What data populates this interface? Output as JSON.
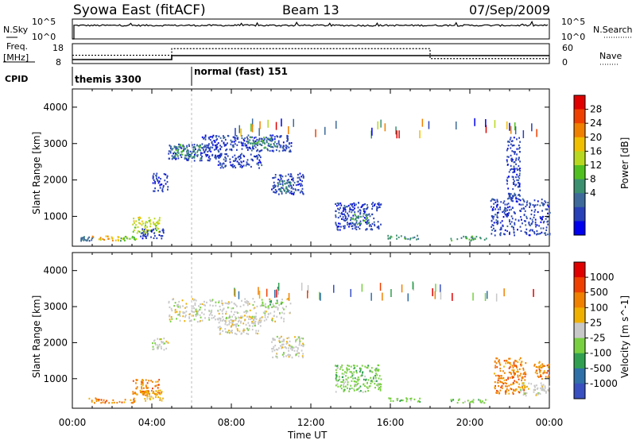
{
  "header": {
    "station": "Syowa East (fitACF)",
    "beam": "Beam 13",
    "date": "07/Sep/2009"
  },
  "top_panels": {
    "nsky_label": "N.Sky",
    "nsearch_label": "N.Search",
    "noise_ticks": [
      "10^5",
      "10^0"
    ],
    "freq_label_1": "Freq.",
    "freq_label_2": "[MHz]",
    "freq_ticks": [
      "18",
      "8"
    ],
    "nave_label": "Nave",
    "nave_ticks": [
      "60",
      "0"
    ],
    "cpid_label": "CPID",
    "cpid_segments": [
      {
        "name": "themis 3300",
        "start_hour": 0,
        "end_hour": 6
      },
      {
        "name": "normal (fast) 151",
        "start_hour": 6,
        "end_hour": 24
      }
    ],
    "freq_profile": [
      {
        "hour": 0,
        "mhz": 10
      },
      {
        "hour": 5,
        "mhz": 12
      },
      {
        "hour": 24,
        "mhz": 12
      }
    ],
    "nave_profile": [
      {
        "hour": 0,
        "n": 25
      },
      {
        "hour": 5,
        "n": 45
      },
      {
        "hour": 18,
        "n": 15
      },
      {
        "hour": 24,
        "n": 15
      }
    ]
  },
  "chart_data": [
    {
      "type": "heatmap",
      "title": "Power",
      "ylabel": "Slant Range [km]",
      "colorbar_label": "Power [dB]",
      "colorbar_ticks": [
        "28",
        "24",
        "20",
        "16",
        "12",
        "8",
        "4"
      ],
      "colors": [
        "#0000ee",
        "#2840b8",
        "#3d6a9a",
        "#3b9070",
        "#50c020",
        "#b8d820",
        "#f0c000",
        "#f08000",
        "#f04000",
        "#e00000"
      ],
      "xlim": [
        0,
        24
      ],
      "ylim": [
        180,
        4500
      ],
      "yticks": [
        "1000",
        "2000",
        "3000",
        "4000"
      ],
      "blobs": [
        {
          "h0": 0.8,
          "h1": 2.4,
          "r0": 350,
          "r1": 480,
          "c": 6
        },
        {
          "h0": 0.4,
          "h1": 1.0,
          "r0": 350,
          "r1": 480,
          "c": 2
        },
        {
          "h0": 2.4,
          "h1": 3.2,
          "r0": 350,
          "r1": 480,
          "c": 4
        },
        {
          "h0": 3.0,
          "h1": 4.4,
          "r0": 550,
          "r1": 1000,
          "c": 5
        },
        {
          "h0": 3.4,
          "h1": 4.6,
          "r0": 400,
          "r1": 700,
          "c": 1
        },
        {
          "h0": 4.0,
          "h1": 4.8,
          "r0": 1700,
          "r1": 2200,
          "c": 1
        },
        {
          "h0": 4.8,
          "h1": 7.5,
          "r0": 2550,
          "r1": 3000,
          "c": 1
        },
        {
          "h0": 5.0,
          "h1": 6.5,
          "r0": 2600,
          "r1": 3000,
          "c": 3
        },
        {
          "h0": 6.5,
          "h1": 11.0,
          "r0": 2800,
          "r1": 3250,
          "c": 1
        },
        {
          "h0": 8.8,
          "h1": 10.2,
          "r0": 2900,
          "r1": 3200,
          "c": 3
        },
        {
          "h0": 7.3,
          "h1": 9.5,
          "r0": 2350,
          "r1": 2750,
          "c": 1
        },
        {
          "h0": 10.0,
          "h1": 11.6,
          "r0": 1600,
          "r1": 2200,
          "c": 1
        },
        {
          "h0": 10.3,
          "h1": 11.0,
          "r0": 1700,
          "r1": 2000,
          "c": 3
        },
        {
          "h0": 13.2,
          "h1": 15.5,
          "r0": 650,
          "r1": 1400,
          "c": 1
        },
        {
          "h0": 14.0,
          "h1": 15.0,
          "r0": 800,
          "r1": 1100,
          "c": 3
        },
        {
          "h0": 15.8,
          "h1": 17.5,
          "r0": 380,
          "r1": 500,
          "c": 3
        },
        {
          "h0": 19.0,
          "h1": 20.8,
          "r0": 350,
          "r1": 480,
          "c": 3
        },
        {
          "h0": 21.0,
          "h1": 24.0,
          "r0": 500,
          "r1": 1500,
          "c": 1
        },
        {
          "h0": 21.8,
          "h1": 22.5,
          "r0": 1500,
          "r1": 3200,
          "c": 1
        }
      ]
    },
    {
      "type": "heatmap",
      "title": "Velocity",
      "ylabel": "Slant Range [km]",
      "xlabel": "Time UT",
      "colorbar_label": "Velocity [m s^-1]",
      "colorbar_ticks": [
        "1000",
        "500",
        "100",
        "25",
        "-25",
        "-100",
        "-500",
        "-1000"
      ],
      "colors": [
        "#3850c0",
        "#2f70a8",
        "#30a050",
        "#78d040",
        "#c8c8c8",
        "#f0b000",
        "#f08000",
        "#f04000",
        "#e00000"
      ],
      "xlim": [
        0,
        24
      ],
      "ylim": [
        180,
        4500
      ],
      "yticks": [
        "1000",
        "2000",
        "3000",
        "4000"
      ],
      "xticks": [
        "00:00",
        "04:00",
        "08:00",
        "12:00",
        "16:00",
        "20:00",
        "00:00"
      ],
      "blobs": [
        {
          "h0": 0.8,
          "h1": 3.2,
          "r0": 350,
          "r1": 480,
          "c": 6
        },
        {
          "h0": 3.0,
          "h1": 4.4,
          "r0": 550,
          "r1": 1000,
          "c": 6
        },
        {
          "h0": 3.4,
          "h1": 4.6,
          "r0": 400,
          "r1": 700,
          "c": 5
        },
        {
          "h0": 4.0,
          "h1": 4.8,
          "r0": 1800,
          "r1": 2150,
          "c": 4
        },
        {
          "h0": 4.8,
          "h1": 11.0,
          "r0": 2600,
          "r1": 3250,
          "c": 4
        },
        {
          "h0": 7.3,
          "h1": 9.5,
          "r0": 2250,
          "r1": 2750,
          "c": 4
        },
        {
          "h0": 9.5,
          "h1": 10.5,
          "r0": 3000,
          "r1": 3200,
          "c": 3
        },
        {
          "h0": 10.0,
          "h1": 11.6,
          "r0": 1600,
          "r1": 2200,
          "c": 4
        },
        {
          "h0": 13.2,
          "h1": 15.5,
          "r0": 650,
          "r1": 1400,
          "c": 3
        },
        {
          "h0": 15.8,
          "h1": 17.5,
          "r0": 380,
          "r1": 500,
          "c": 3
        },
        {
          "h0": 19.0,
          "h1": 20.8,
          "r0": 350,
          "r1": 480,
          "c": 3
        },
        {
          "h0": 21.2,
          "h1": 22.8,
          "r0": 600,
          "r1": 1600,
          "c": 6
        },
        {
          "h0": 22.5,
          "h1": 24.0,
          "r0": 550,
          "r1": 900,
          "c": 4
        },
        {
          "h0": 23.2,
          "h1": 24.0,
          "r0": 1000,
          "r1": 1500,
          "c": 6
        }
      ]
    }
  ]
}
